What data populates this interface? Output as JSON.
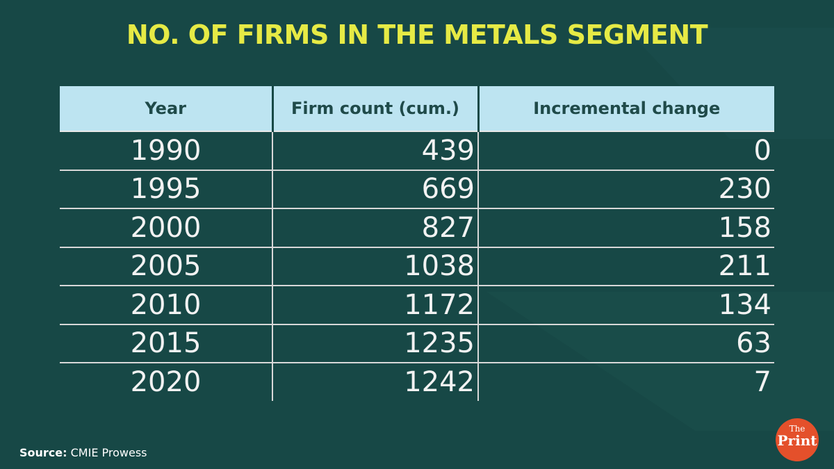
{
  "title": "NO. OF FIRMS IN THE METALS SEGMENT",
  "source_label": "Source:",
  "source_text": "CMIE Prowess",
  "logo": {
    "small": "The",
    "large": "Print"
  },
  "colors": {
    "background": "#174846",
    "title": "#e6ea45",
    "header_bg": "#bde4f1",
    "header_text": "#1f4a49",
    "logo_bg": "#e4502b"
  },
  "chart_data": {
    "type": "table",
    "columns": [
      "Year",
      "Firm count (cum.)",
      "Incremental change"
    ],
    "rows": [
      [
        "1990",
        "439",
        "0"
      ],
      [
        "1995",
        "669",
        "230"
      ],
      [
        "2000",
        "827",
        "158"
      ],
      [
        "2005",
        "1038",
        "211"
      ],
      [
        "2010",
        "1172",
        "134"
      ],
      [
        "2015",
        "1235",
        "63"
      ],
      [
        "2020",
        "1242",
        "7"
      ]
    ]
  }
}
